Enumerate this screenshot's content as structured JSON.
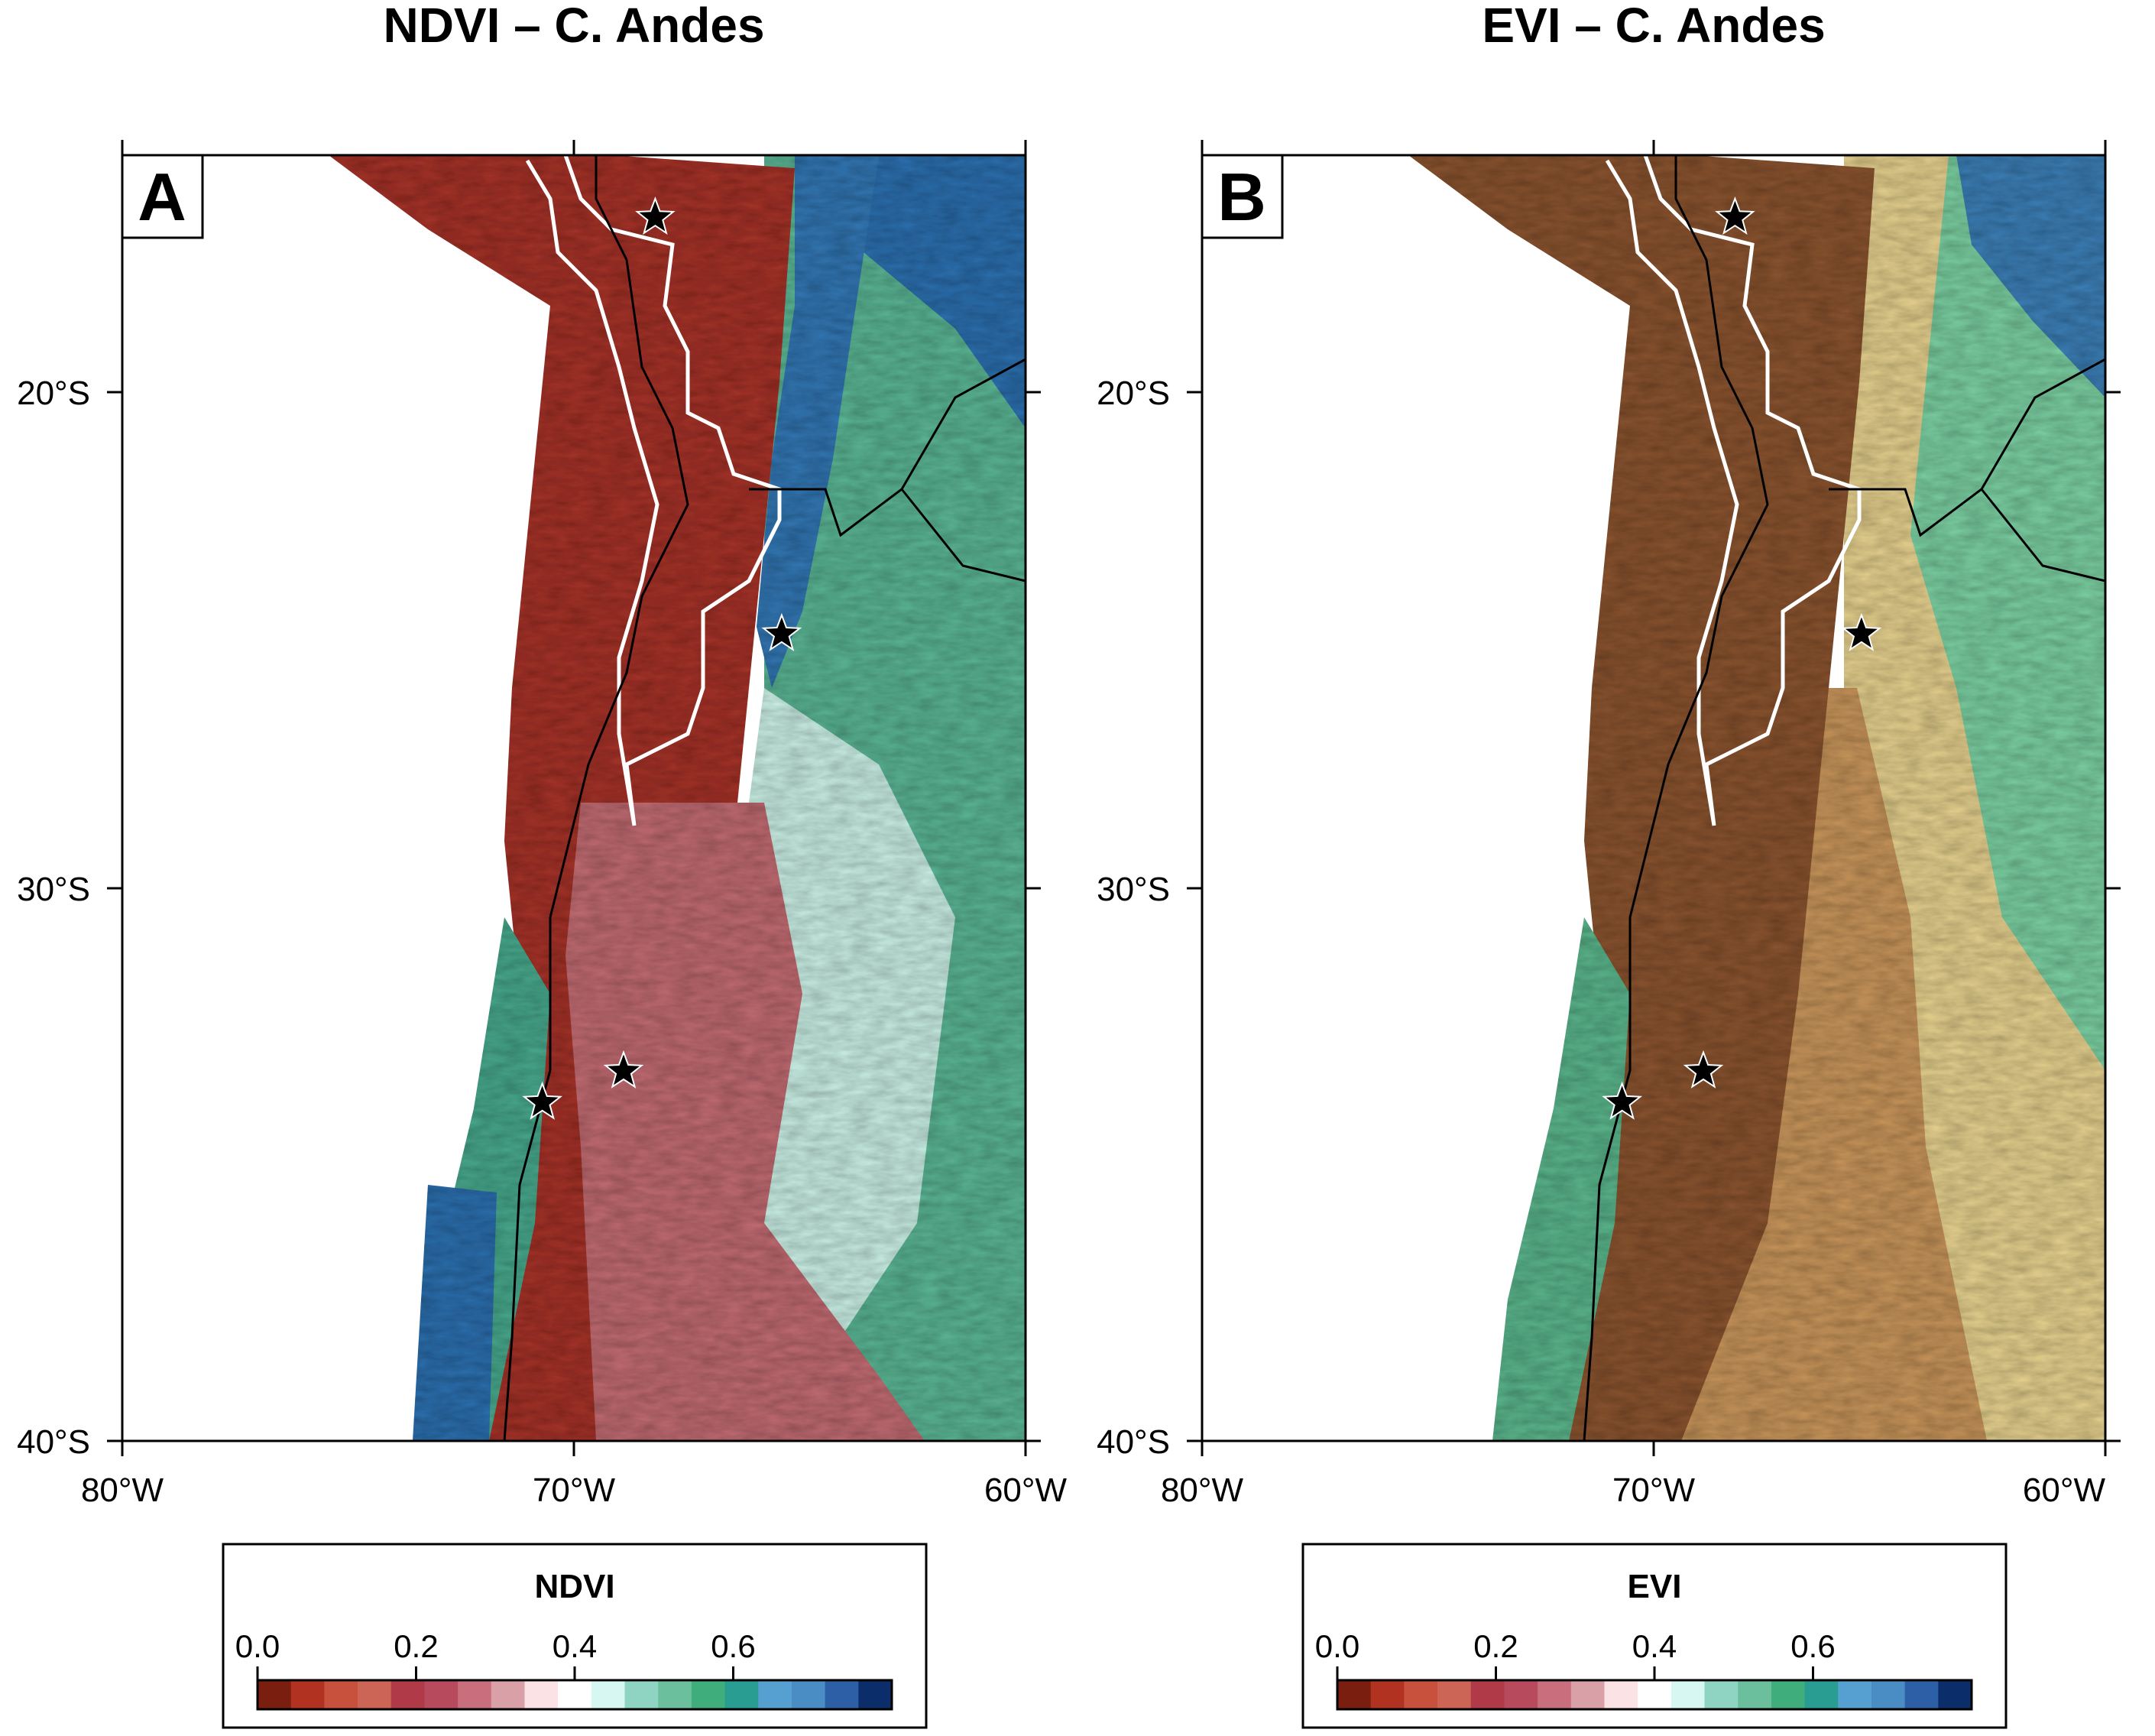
{
  "panels": [
    {
      "id": "A",
      "title": "NDVI – C. Andes",
      "letter": "A",
      "x_ticks": [
        "80°W",
        "70°W",
        "60°W"
      ],
      "y_ticks": [
        "20°S",
        "30°S",
        "40°S"
      ],
      "colorbar": {
        "title": "NDVI",
        "tick_labels": [
          "0.0",
          "0.2",
          "0.4",
          "0.6"
        ],
        "tick_values": [
          0.0,
          0.2,
          0.4,
          0.6
        ],
        "range": [
          0.0,
          0.8
        ],
        "colors": [
          "#7a1e0f",
          "#b23222",
          "#c8513e",
          "#cc6555",
          "#b03a48",
          "#b84a5e",
          "#c86e7c",
          "#d9a0a8",
          "#fbe2e4",
          "#ffffff",
          "#d6f7f2",
          "#8fd4c2",
          "#6cbf9c",
          "#3fae7c",
          "#2a9d93",
          "#55a0d0",
          "#4a8dc4",
          "#2c5fa6",
          "#0b2e6a"
        ]
      }
    },
    {
      "id": "B",
      "title": "EVI – C. Andes",
      "letter": "B",
      "x_ticks": [
        "80°W",
        "70°W",
        "60°W"
      ],
      "y_ticks": [
        "20°S",
        "30°S",
        "40°S"
      ],
      "colorbar": {
        "title": "EVI",
        "tick_labels": [
          "0.0",
          "0.2",
          "0.4",
          "0.6"
        ],
        "tick_values": [
          0.0,
          0.2,
          0.4,
          0.6
        ],
        "range": [
          0.0,
          0.8
        ],
        "colors": [
          "#7a1e0f",
          "#b23222",
          "#c8513e",
          "#cc6555",
          "#b03a48",
          "#b84a5e",
          "#c86e7c",
          "#d9a0a8",
          "#fbe2e4",
          "#ffffff",
          "#d6f7f2",
          "#8fd4c2",
          "#6cbf9c",
          "#3fae7c",
          "#2a9d93",
          "#55a0d0",
          "#4a8dc4",
          "#2c5fa6",
          "#0b2e6a"
        ]
      }
    }
  ],
  "map_extent": {
    "lon": [
      -80,
      -60
    ],
    "lat": [
      -40,
      -15.3
    ]
  },
  "stars": [
    {
      "lon": -68.2,
      "lat": -16.5
    },
    {
      "lon": -65.4,
      "lat": -24.5
    },
    {
      "lon": -68.9,
      "lat": -32.9
    },
    {
      "lon": -70.7,
      "lat": -33.5
    }
  ],
  "colors": {
    "ocean": "#ffffff",
    "ndvi_arid": "#a4342c",
    "ndvi_mid": "#c06c72",
    "ndvi_veg": "#5cb594",
    "ndvi_wet": "#2f6fae",
    "evi_arid": "#8a5530",
    "evi_mid": "#c8955c",
    "evi_dry": "#e5d08e",
    "evi_veg": "#7ccfa2"
  }
}
